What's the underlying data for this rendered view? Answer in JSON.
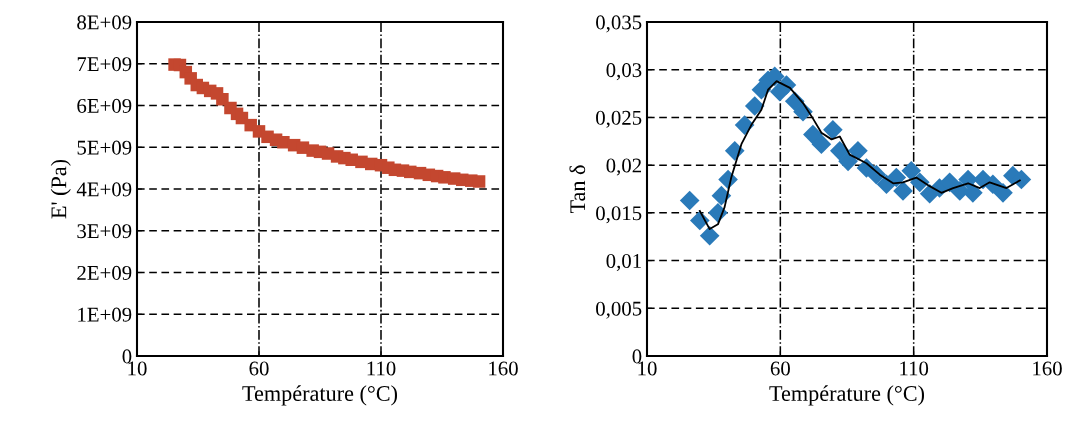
{
  "chart_data": [
    {
      "type": "scatter",
      "xlabel": "Température (°C)",
      "ylabel": "E' (Pa)",
      "marker": "square",
      "grid": true,
      "xlim": [
        10,
        160
      ],
      "xticks": [
        10,
        60,
        110,
        160
      ],
      "ylim": [
        0,
        8000000000
      ],
      "yticks": [
        {
          "value": 0,
          "label": "0"
        },
        {
          "value": 1000000000,
          "label": "1E+09"
        },
        {
          "value": 2000000000,
          "label": "2E+09"
        },
        {
          "value": 3000000000,
          "label": "3E+09"
        },
        {
          "value": 4000000000,
          "label": "4E+09"
        },
        {
          "value": 5000000000,
          "label": "5E+09"
        },
        {
          "value": 6000000000,
          "label": "6E+09"
        },
        {
          "value": 7000000000,
          "label": "7E+09"
        },
        {
          "value": 8000000000,
          "label": "8E+09"
        }
      ],
      "series": [
        {
          "color": "#c4472f",
          "x": [
            25.4,
            27.6,
            30,
            32,
            34.5,
            37,
            40,
            42.8,
            45,
            48.3,
            51,
            53,
            56.6,
            60,
            63.5,
            67,
            70,
            74.4,
            78,
            82,
            85,
            88.3,
            92,
            95,
            98,
            102,
            106,
            110,
            113,
            115.7,
            119,
            122,
            126,
            129.6,
            133,
            136,
            140,
            143.3,
            147,
            150.2
          ],
          "values": [
            6980000000,
            6970000000,
            6800000000,
            6650000000,
            6490000000,
            6420000000,
            6350000000,
            6290000000,
            6150000000,
            5940000000,
            5800000000,
            5700000000,
            5530000000,
            5380000000,
            5250000000,
            5180000000,
            5120000000,
            5050000000,
            4990000000,
            4920000000,
            4890000000,
            4850000000,
            4780000000,
            4740000000,
            4700000000,
            4650000000,
            4600000000,
            4570000000,
            4510000000,
            4460000000,
            4440000000,
            4410000000,
            4380000000,
            4340000000,
            4310000000,
            4280000000,
            4250000000,
            4220000000,
            4200000000,
            4180000000
          ]
        }
      ]
    },
    {
      "type": "scatter",
      "xlabel": "Température (°C)",
      "ylabel": "Tan δ",
      "grid": true,
      "xlim": [
        10,
        160
      ],
      "xticks": [
        10,
        60,
        110,
        160
      ],
      "ylim": [
        0,
        0.035
      ],
      "yticks": [
        {
          "value": 0,
          "label": "0"
        },
        {
          "value": 0.005,
          "label": "0,005"
        },
        {
          "value": 0.01,
          "label": "0,01"
        },
        {
          "value": 0.015,
          "label": "0,015"
        },
        {
          "value": 0.02,
          "label": "0,02"
        },
        {
          "value": 0.025,
          "label": "0,025"
        },
        {
          "value": 0.03,
          "label": "0,03"
        },
        {
          "value": 0.035,
          "label": "0,035"
        }
      ],
      "series": [
        {
          "type": "scatter",
          "marker": "diamond",
          "color": "#2a7ab9",
          "x": [
            26,
            29.8,
            33.5,
            36.6,
            37.9,
            40.4,
            42.9,
            46.6,
            50.4,
            52.9,
            55.4,
            57.9,
            59.8,
            62.3,
            65.4,
            68.5,
            72.2,
            75.4,
            79.7,
            82.3,
            85.4,
            89.1,
            92.3,
            96,
            99.8,
            103.5,
            106,
            109.1,
            112.3,
            116,
            119.7,
            123.5,
            127.3,
            130.4,
            132.2,
            136,
            139.7,
            143.5,
            147.2,
            150.4
          ],
          "values": [
            0.0163,
            0.0142,
            0.0126,
            0.015,
            0.0168,
            0.0185,
            0.0215,
            0.0242,
            0.0262,
            0.0279,
            0.0289,
            0.0293,
            0.0277,
            0.0284,
            0.0267,
            0.0256,
            0.0232,
            0.0222,
            0.0237,
            0.0215,
            0.0204,
            0.0215,
            0.0197,
            0.019,
            0.018,
            0.0187,
            0.0173,
            0.0194,
            0.0182,
            0.017,
            0.0176,
            0.0182,
            0.0173,
            0.0185,
            0.0171,
            0.0185,
            0.018,
            0.0171,
            0.0189,
            0.0185
          ]
        },
        {
          "type": "line",
          "marker": "none",
          "line_style": "solid",
          "color": "#000000",
          "x": [
            29.8,
            33.5,
            36.6,
            39.1,
            41.6,
            45.4,
            49.1,
            52.9,
            55.4,
            58.6,
            63.6,
            68.5,
            72.2,
            75.4,
            79.2,
            82.3,
            86,
            92.3,
            97.3,
            102.3,
            106,
            111,
            116,
            120.4,
            124.8,
            130.4,
            134.8,
            138.5,
            144.8,
            149.8
          ],
          "values": [
            0.0152,
            0.0133,
            0.0138,
            0.0156,
            0.0187,
            0.0222,
            0.0242,
            0.0258,
            0.0279,
            0.0288,
            0.0281,
            0.0265,
            0.0249,
            0.0234,
            0.0227,
            0.023,
            0.0211,
            0.0202,
            0.019,
            0.0181,
            0.0182,
            0.0187,
            0.0178,
            0.0171,
            0.0176,
            0.0181,
            0.0176,
            0.0182,
            0.0176,
            0.0184
          ]
        }
      ]
    }
  ]
}
